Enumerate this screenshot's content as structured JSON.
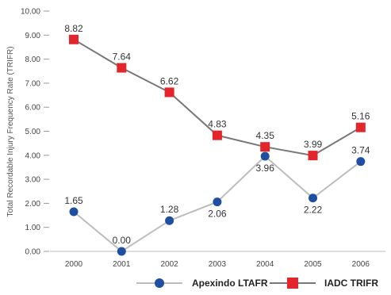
{
  "chart_data": {
    "type": "line",
    "title": "",
    "xlabel": "",
    "ylabel": "Total Recordable Injury Frequency Rate (TRIFR)",
    "categories": [
      "2000",
      "2001",
      "2002",
      "2003",
      "2004",
      "2005",
      "2006"
    ],
    "y_ticks": [
      "0.00",
      "1.00",
      "2.00",
      "3.00",
      "4.00",
      "5.00",
      "6.00",
      "7.00",
      "8.00",
      "9.00",
      "10.00"
    ],
    "ylim": [
      0,
      10
    ],
    "grid": false,
    "legend_position": "bottom-right",
    "series": [
      {
        "name": "Apexindo LTAFR",
        "values": [
          1.65,
          0.0,
          1.28,
          2.06,
          3.96,
          2.22,
          3.74
        ],
        "labels": [
          "1.65",
          "0.00",
          "1.28",
          "2.06",
          "3.96",
          "2.22",
          "3.74"
        ],
        "marker": "circle",
        "marker_color": "#1f4fa0",
        "line_color": "#bdbdbd"
      },
      {
        "name": "IADC TRIFR",
        "values": [
          8.82,
          7.64,
          6.62,
          4.83,
          4.35,
          3.99,
          5.16
        ],
        "labels": [
          "8.82",
          "7.64",
          "6.62",
          "4.83",
          "4.35",
          "3.99",
          "5.16"
        ],
        "marker": "square",
        "marker_color": "#e3262b",
        "line_color": "#777777"
      }
    ]
  }
}
